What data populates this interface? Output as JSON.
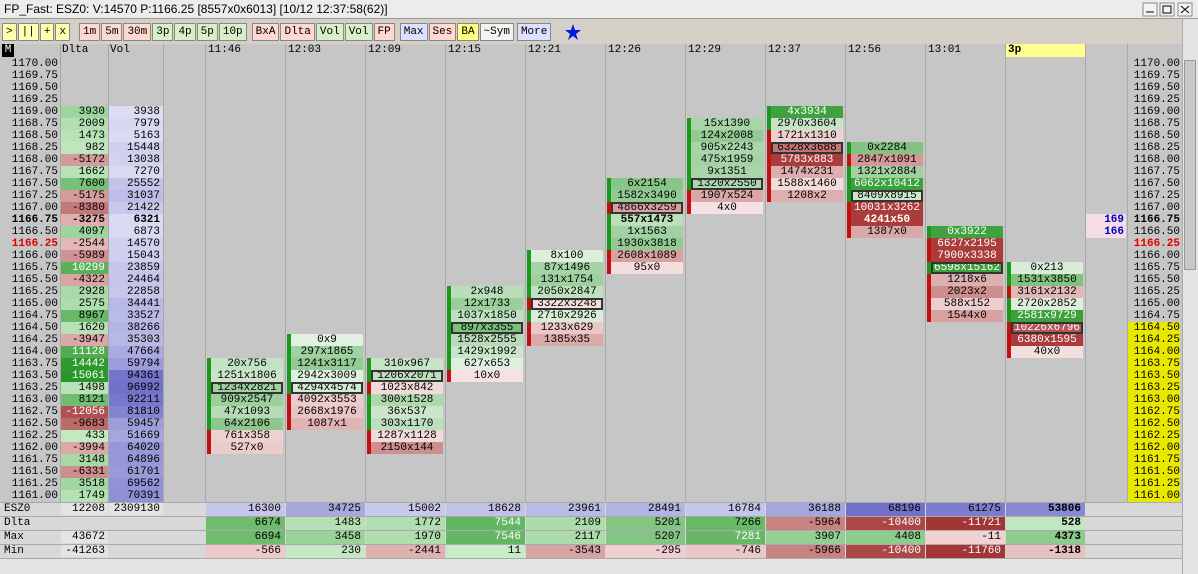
{
  "title": "FP_Fast: ESZ0: V:14570 P:1166.25 [8557x0x6013] [10/12 12:37:58(62)]",
  "toolbar": [
    ">",
    "||",
    "+",
    "x",
    "1m",
    "5m",
    "30m",
    "3p",
    "4p",
    "5p",
    "10p",
    "BxA",
    "Dlta",
    "Vol",
    "Vol",
    "FP",
    "Max",
    "Ses",
    "BA",
    "~Sym",
    "More"
  ],
  "header": {
    "corner": "M",
    "delta": "Dlta",
    "volume": "Vol"
  },
  "prices": [
    "1170.00",
    "1169.75",
    "1169.50",
    "1169.25",
    "1169.00",
    "1168.75",
    "1168.50",
    "1168.25",
    "1168.00",
    "1167.75",
    "1167.50",
    "1167.25",
    "1167.00",
    "1166.75",
    "1166.50",
    "1166.25",
    "1166.00",
    "1165.75",
    "1165.50",
    "1165.25",
    "1165.00",
    "1164.75",
    "1164.50",
    "1164.25",
    "1164.00",
    "1163.75",
    "1163.50",
    "1163.25",
    "1163.00",
    "1162.75",
    "1162.50",
    "1162.25",
    "1162.00",
    "1161.75",
    "1161.50",
    "1161.25",
    "1161.00"
  ],
  "profile": {
    "start_price": 1169.0,
    "delta": [
      3930,
      2009,
      1473,
      982,
      -5172,
      1662,
      7600,
      -5175,
      -8380,
      -3275,
      4097,
      -2544,
      -5989,
      10299,
      -4322,
      2928,
      2575,
      8967,
      1620,
      -3947,
      11128,
      14442,
      15061,
      1498,
      8121,
      -12056,
      -9683,
      433,
      -3994,
      3148,
      -6331,
      3518,
      1749
    ],
    "volume": [
      3938,
      7979,
      5163,
      15448,
      13038,
      7270,
      25552,
      31037,
      21422,
      6321,
      6873,
      14570,
      15043,
      23859,
      24464,
      22858,
      34441,
      33527,
      38266,
      35303,
      47664,
      59794,
      94361,
      96992,
      92211,
      81810,
      59457,
      51669,
      64020,
      64896,
      61701,
      69562,
      70391
    ]
  },
  "columns": [
    {
      "time": "11:46",
      "start_price": 1163.75,
      "poc_index": 2,
      "cells": [
        "20x756",
        "1251x1806",
        "1234x2821",
        "909x2547",
        "47x1093",
        "64x2106",
        "761x358",
        "527x0"
      ]
    },
    {
      "time": "12:03",
      "start_price": 1164.25,
      "poc_index": 4,
      "cells": [
        "0x9",
        "297x1865",
        "1241x3117",
        "2942x3009",
        "4294x4574",
        "4092x3553",
        "2668x1976",
        "1087x1"
      ]
    },
    {
      "time": "12:09",
      "start_price": 1163.75,
      "poc_index": 1,
      "cells": [
        "310x967",
        "1206x2071",
        "1023x842",
        "300x1528",
        "36x537",
        "303x1170",
        "1287x1128",
        "2150x144"
      ]
    },
    {
      "time": "12:15",
      "start_price": 1165.25,
      "poc_index": 3,
      "cells": [
        "2x948",
        "12x1733",
        "1037x1850",
        "897x3355",
        "1528x2555",
        "1429x1992",
        "627x653",
        "10x0"
      ]
    },
    {
      "time": "12:21",
      "start_price": 1166.0,
      "poc_index": 4,
      "cells": [
        "8x100",
        "87x1496",
        "131x1754",
        "2050x2847",
        "3322x3248",
        "2710x2926",
        "1233x629",
        "1385x35"
      ]
    },
    {
      "time": "12:26",
      "start_price": 1167.5,
      "poc_index": 2,
      "cells": [
        "6x2154",
        "1582x3490",
        "4866x3259",
        "557x1473",
        "1x1563",
        "1930x3818",
        "2608x1089",
        "95x0"
      ]
    },
    {
      "time": "12:29",
      "start_price": 1168.75,
      "poc_index": 5,
      "cells": [
        "15x1390",
        "124x2008",
        "905x2243",
        "475x1959",
        "9x1351",
        "1320x2550",
        "1907x524",
        "4x0"
      ]
    },
    {
      "time": "12:37",
      "start_price": 1169.0,
      "poc_index": 3,
      "cells": [
        "4x3934",
        "2970x3604",
        "1721x1310",
        "6328x3688",
        "5783x883",
        "1474x231",
        "1588x1460",
        "1208x2"
      ]
    },
    {
      "time": "12:56",
      "start_price": 1168.25,
      "poc_index": 4,
      "cells": [
        "0x2284",
        "2847x1091",
        "1321x2884",
        "6062x10412",
        "8409x8915",
        "10031x3262",
        "4241x50",
        "1387x0"
      ]
    },
    {
      "time": "13:01",
      "start_price": 1166.5,
      "poc_index": 3,
      "cells": [
        "0x3922",
        "6627x2195",
        "7900x3338",
        "6598x15162",
        "1218x6",
        "2023x2",
        "588x152",
        "1544x0"
      ]
    },
    {
      "time": "3p",
      "start_price": 1165.75,
      "poc_index": 5,
      "cells": [
        "0x213",
        "1531x3850",
        "3161x2132",
        "2720x2852",
        "2581x9729",
        "10226x6796",
        "6380x1595",
        "40x0"
      ]
    }
  ],
  "depth": {
    "start_price": 1166.75,
    "values": [
      169,
      166
    ]
  },
  "footer": [
    {
      "label": "ESZ0",
      "delta": 12208,
      "volume": 2309130,
      "values": [
        16300,
        34725,
        15002,
        18628,
        23961,
        28491,
        16784,
        36188,
        68196,
        61275,
        53806
      ]
    },
    {
      "label": "Dlta",
      "values": [
        6674,
        1483,
        1772,
        7544,
        2109,
        5201,
        7266,
        -5964,
        -10400,
        -11721,
        528
      ]
    },
    {
      "label": "Max",
      "delta": 43672,
      "values": [
        6694,
        3458,
        1970,
        7546,
        2117,
        5207,
        7281,
        3907,
        4408,
        -11,
        4373
      ]
    },
    {
      "label": "Min",
      "delta": -41263,
      "values": [
        -566,
        230,
        -2441,
        11,
        -3543,
        -295,
        -746,
        -5966,
        -10400,
        -11760,
        -1318
      ]
    }
  ]
}
